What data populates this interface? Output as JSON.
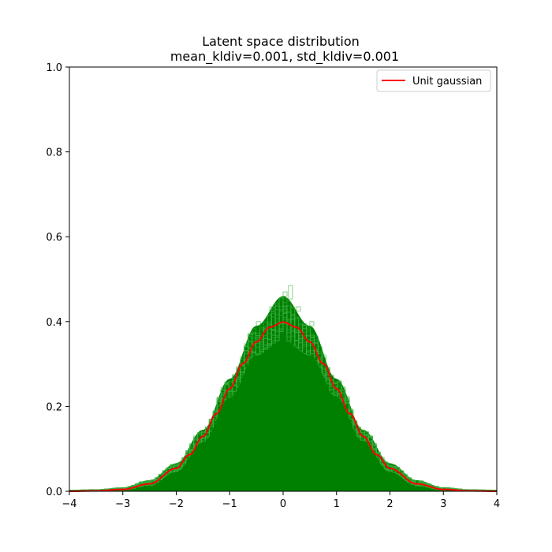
{
  "chart_data": {
    "type": "line",
    "title": "Latent space distribution",
    "subtitle": "mean_kldiv=0.001, std_kldiv=0.001",
    "xlabel": "",
    "ylabel": "",
    "xlim": [
      -4,
      4
    ],
    "ylim": [
      0,
      1.0
    ],
    "xticks": [
      -4,
      -3,
      -2,
      -1,
      0,
      1,
      2,
      3,
      4
    ],
    "xtick_labels": [
      "−4",
      "−3",
      "−2",
      "−1",
      "0",
      "1",
      "2",
      "3",
      "4"
    ],
    "yticks": [
      0,
      0.2,
      0.4,
      0.6,
      0.8,
      1.0
    ],
    "ytick_labels": [
      "0.0",
      "0.2",
      "0.4",
      "0.6",
      "0.8",
      "1.0"
    ],
    "grid": false,
    "legend_position": "top-right",
    "series": [
      {
        "name": "Unit gaussian",
        "color": "#ff0000",
        "x": [
          -4,
          -3.5,
          -3,
          -2.5,
          -2,
          -1.75,
          -1.5,
          -1.25,
          -1,
          -0.75,
          -0.5,
          -0.25,
          0,
          0.25,
          0.5,
          0.75,
          1,
          1.25,
          1.5,
          1.75,
          2,
          2.5,
          3,
          3.5,
          4
        ],
        "y": [
          0.0001,
          0.0009,
          0.0044,
          0.0175,
          0.054,
          0.0863,
          0.1295,
          0.1826,
          0.242,
          0.3011,
          0.3521,
          0.3867,
          0.3989,
          0.3867,
          0.3521,
          0.3011,
          0.242,
          0.1826,
          0.1295,
          0.0863,
          0.054,
          0.0175,
          0.0044,
          0.0009,
          0.0001
        ]
      }
    ],
    "histograms": {
      "description_color": "#008000",
      "bin_centers": [
        -4,
        -3.5,
        -3,
        -2.5,
        -2,
        -1.5,
        -1,
        -0.5,
        0,
        0.5,
        1,
        1.5,
        2,
        2.5,
        3,
        3.5,
        4
      ],
      "density_low": [
        0.0,
        0.0005,
        0.002,
        0.012,
        0.045,
        0.115,
        0.22,
        0.32,
        0.355,
        0.32,
        0.22,
        0.115,
        0.045,
        0.012,
        0.002,
        0.0005,
        0.0
      ],
      "density_high": [
        0.003,
        0.004,
        0.009,
        0.026,
        0.066,
        0.145,
        0.265,
        0.39,
        0.46,
        0.39,
        0.265,
        0.145,
        0.066,
        0.026,
        0.009,
        0.004,
        0.003
      ],
      "peak_max": 0.485
    },
    "colors": {
      "histogram": "#008000",
      "histogram_light": "#3cb043",
      "gaussian": "#ff0000"
    }
  }
}
